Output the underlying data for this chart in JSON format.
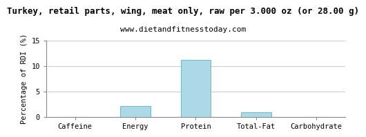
{
  "title": "Turkey, retail parts, wing, meat only, raw per 3.000 oz (or 28.00 g)",
  "subtitle": "www.dietandfitnesstoday.com",
  "categories": [
    "Caffeine",
    "Energy",
    "Protein",
    "Total-Fat",
    "Carbohydrate"
  ],
  "values": [
    0.0,
    2.1,
    11.15,
    1.0,
    0.05
  ],
  "bar_color": "#add8e6",
  "bar_edge_color": "#7bb8cc",
  "ylabel": "Percentage of RDI (%)",
  "ylim": [
    0,
    15
  ],
  "yticks": [
    0,
    5,
    10,
    15
  ],
  "grid_color": "#cccccc",
  "background_color": "#ffffff",
  "title_fontsize": 9,
  "subtitle_fontsize": 8,
  "ylabel_fontsize": 7.5,
  "tick_fontsize": 7.5,
  "bar_width": 0.5
}
